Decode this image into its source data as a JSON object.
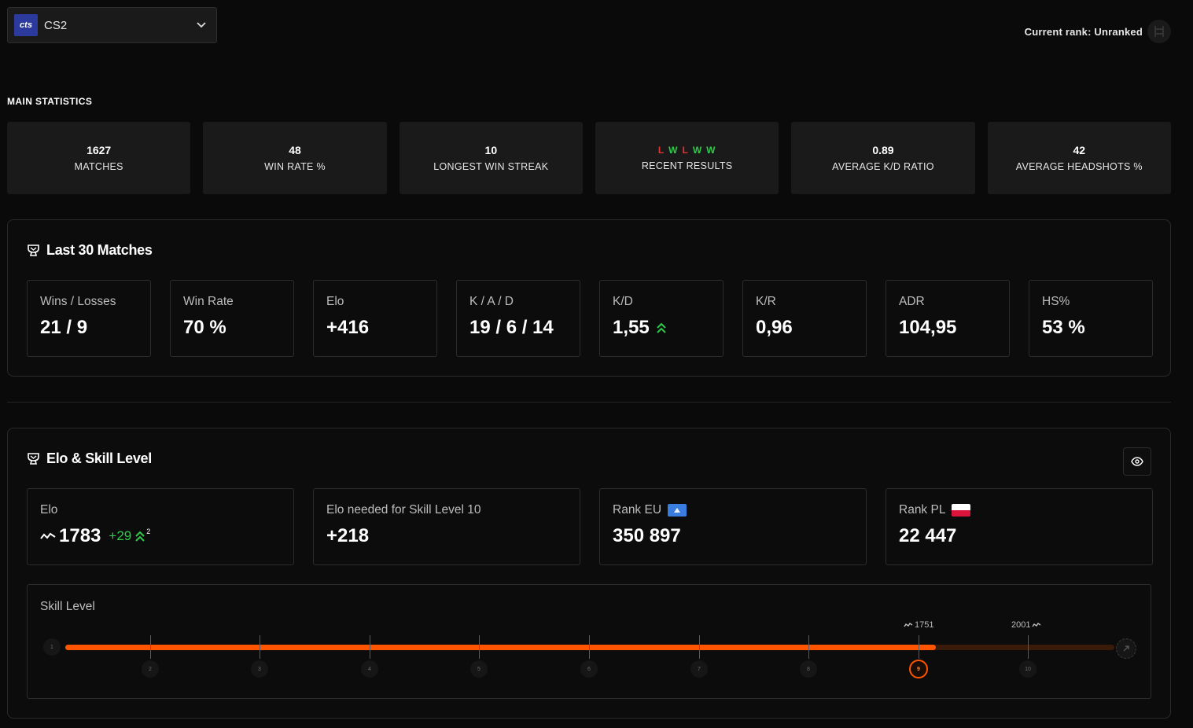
{
  "header": {
    "game_logo_text": "cts",
    "game_name": "CS2",
    "current_rank": "Current rank: Unranked"
  },
  "main_stats": {
    "title": "MAIN STATISTICS",
    "cards": [
      {
        "value": "1627",
        "label": "MATCHES"
      },
      {
        "value": "48",
        "label": "WIN RATE %"
      },
      {
        "value": "10",
        "label": "LONGEST WIN STREAK"
      },
      {
        "value": "",
        "label": "RECENT RESULTS"
      },
      {
        "value": "0.89",
        "label": "AVERAGE K/D RATIO"
      },
      {
        "value": "42",
        "label": "AVERAGE HEADSHOTS %"
      }
    ],
    "recent_results": [
      "L",
      "W",
      "L",
      "W",
      "W"
    ]
  },
  "last30": {
    "title": "Last 30 Matches",
    "cards": [
      {
        "label": "Wins / Losses",
        "value": "21 / 9"
      },
      {
        "label": "Win Rate",
        "value": "70 %"
      },
      {
        "label": "Elo",
        "value": "+416"
      },
      {
        "label": "K / A / D",
        "value": "19 / 6 / 14"
      },
      {
        "label": "K/D",
        "value": "1,55"
      },
      {
        "label": "K/R",
        "value": "0,96"
      },
      {
        "label": "ADR",
        "value": "104,95"
      },
      {
        "label": "HS%",
        "value": "53 %"
      }
    ]
  },
  "elo_section": {
    "title": "Elo & Skill Level",
    "elo": {
      "label": "Elo",
      "value": "1783",
      "delta": "+29",
      "delta_sup": "2"
    },
    "needed": {
      "label": "Elo needed for Skill Level 10",
      "value": "+218"
    },
    "rank_eu": {
      "label": "Rank EU",
      "value": "350 897"
    },
    "rank_pl": {
      "label": "Rank PL",
      "value": "22 447"
    }
  },
  "skill": {
    "label": "Skill Level",
    "levels": [
      "1",
      "2",
      "3",
      "4",
      "5",
      "6",
      "7",
      "8",
      "9",
      "10"
    ],
    "current_level": 9,
    "progress": 0.83,
    "marks": [
      "1751",
      "2001"
    ]
  },
  "colors": {
    "accent": "#ff5500",
    "win": "#2ecc4a",
    "loss": "#e63232",
    "card_bg": "#1a1a1a"
  }
}
